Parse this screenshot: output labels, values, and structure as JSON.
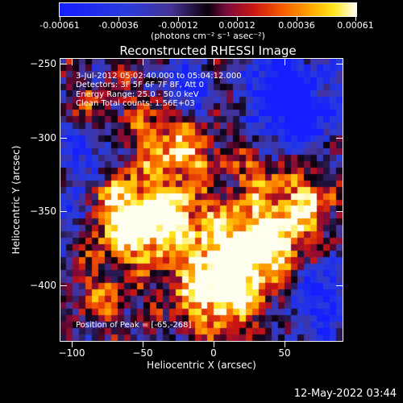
{
  "colorbar": {
    "tick_labels": [
      "-0.00061",
      "-0.00036",
      "-0.00012",
      "0.00012",
      "0.00036",
      "0.00061"
    ],
    "unit_label": "(photons cm⁻² s⁻¹ asec⁻²)",
    "colormap": "blue-black-red-yellow-white"
  },
  "title": "Reconstructed RHESSI Image",
  "annotations": {
    "time": "3-Jul-2012 05:02:40.000 to 05:04:12.000",
    "detectors": "Detectors: 3F 5F 6F 7F 8F, Att 0",
    "energy": "Energy Range: 25.0 - 50.0 keV",
    "clean": "Clean     Total counts: 1.56E+03",
    "peak": "Position of Peak = [-65,-268]"
  },
  "axes": {
    "x_title": "Heliocentric X (arcsec)",
    "y_title": "Heliocentric Y (arcsec)",
    "x_ticks": [
      "−100",
      "−50",
      "0",
      "50"
    ],
    "y_ticks": [
      "−250",
      "−300",
      "−350",
      "−400"
    ],
    "x_range": [
      -102,
      88
    ],
    "y_range": [
      -440,
      -247
    ]
  },
  "timestamp": "12-May-2022 03:44"
}
